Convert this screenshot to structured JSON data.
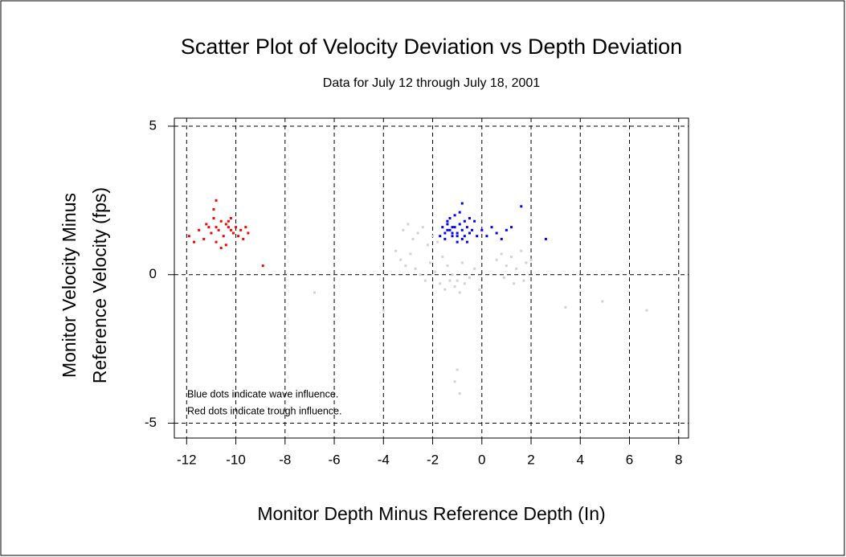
{
  "chart_data": {
    "type": "scatter",
    "title": "Scatter Plot of Velocity Deviation vs Depth Deviation",
    "subtitle": "Data for July 12 through July 18, 2001",
    "x_label": "Monitor Depth Minus Reference Depth (In)",
    "y_label": [
      "Monitor Velocity Minus",
      "Reference Velocity (fps)"
    ],
    "annotations": [
      "Blue dots indicate wave influence.",
      "Red dots indicate trough influence."
    ],
    "xlim": [
      -12.5,
      8.4
    ],
    "ylim": [
      -5.5,
      5.27
    ],
    "xticks": [
      -12,
      -10,
      -8,
      -6,
      -4,
      -2,
      0,
      2,
      4,
      6,
      8
    ],
    "yticks": [
      -5,
      0,
      5
    ],
    "grid": true,
    "series": [
      {
        "color": "#d3d3d3",
        "x": [
          -3.2,
          -3.0,
          -2.8,
          -2.6,
          -2.4,
          -2.2,
          -2.0,
          -1.8,
          -3.5,
          -3.3,
          -3.1,
          -2.9,
          -2.7,
          -2.5,
          -2.3,
          -2.1,
          -1.9,
          -1.7,
          -1.5,
          -1.3,
          -1.1,
          -0.9,
          -0.7,
          -0.5,
          -0.3,
          -0.1,
          -1.6,
          -1.4,
          -1.2,
          -1.0,
          -0.8,
          0.6,
          0.8,
          1.0,
          1.2,
          1.4,
          1.6,
          1.8,
          2.0,
          0.9,
          1.3,
          1.7,
          -1.0,
          -1.1,
          -0.9,
          -4.0,
          3.4,
          4.9,
          6.7,
          -6.8
        ],
        "y": [
          1.5,
          1.7,
          1.2,
          1.4,
          1.6,
          1.0,
          1.3,
          1.1,
          0.8,
          0.5,
          0.3,
          0.7,
          0.2,
          0.0,
          -0.2,
          0.4,
          0.1,
          -0.3,
          -0.5,
          -0.2,
          -0.4,
          -0.6,
          -0.3,
          -0.1,
          0.2,
          -0.5,
          0.6,
          0.3,
          0.0,
          -0.2,
          0.4,
          0.5,
          0.7,
          0.3,
          0.6,
          0.2,
          0.8,
          0.4,
          0.5,
          -0.1,
          -0.3,
          -0.2,
          -3.2,
          -3.6,
          -4.0,
          -1.2,
          -1.1,
          -0.9,
          -1.2,
          -0.6
        ]
      },
      {
        "color": "#0000ff",
        "x": [
          -1.7,
          -1.6,
          -1.5,
          -1.4,
          -1.3,
          -1.2,
          -1.1,
          -1.0,
          -0.9,
          -0.8,
          -0.7,
          -0.6,
          -0.5,
          -0.4,
          -0.3,
          -0.2,
          -1.5,
          -1.3,
          -1.1,
          -0.9,
          -0.7,
          -1.4,
          -1.2,
          -1.0,
          -0.8,
          -0.6,
          0.0,
          0.2,
          0.4,
          0.6,
          0.8,
          1.0,
          1.2,
          2.6,
          1.6,
          -0.8,
          -1.0,
          -1.2,
          -1.4,
          -0.5
        ],
        "y": [
          1.3,
          1.6,
          1.4,
          1.8,
          1.5,
          1.3,
          1.6,
          1.4,
          1.7,
          1.5,
          1.3,
          1.6,
          1.4,
          1.5,
          1.8,
          1.3,
          1.2,
          1.9,
          2.0,
          2.1,
          1.8,
          1.5,
          1.4,
          1.3,
          1.2,
          1.1,
          1.5,
          1.3,
          1.6,
          1.4,
          1.2,
          1.5,
          1.6,
          1.2,
          2.3,
          2.4,
          1.1,
          1.6,
          1.7,
          1.9
        ]
      },
      {
        "color": "#ff0000",
        "x": [
          -11.9,
          -11.7,
          -11.5,
          -11.3,
          -11.2,
          -11.0,
          -10.9,
          -10.8,
          -10.7,
          -10.6,
          -10.5,
          -10.4,
          -10.3,
          -10.2,
          -10.1,
          -10.0,
          -9.9,
          -9.8,
          -9.7,
          -9.6,
          -9.5,
          -10.8,
          -10.6,
          -10.4,
          -10.2,
          -11.1,
          -10.9,
          -10.3,
          -8.9,
          -10.8
        ],
        "y": [
          1.3,
          1.1,
          1.5,
          1.2,
          1.7,
          1.4,
          1.9,
          1.6,
          1.5,
          1.8,
          1.3,
          1.7,
          1.6,
          1.5,
          1.4,
          1.6,
          1.3,
          1.5,
          1.2,
          1.6,
          1.4,
          1.1,
          0.9,
          1.0,
          1.9,
          1.6,
          2.2,
          1.8,
          0.3,
          2.5
        ]
      }
    ]
  }
}
